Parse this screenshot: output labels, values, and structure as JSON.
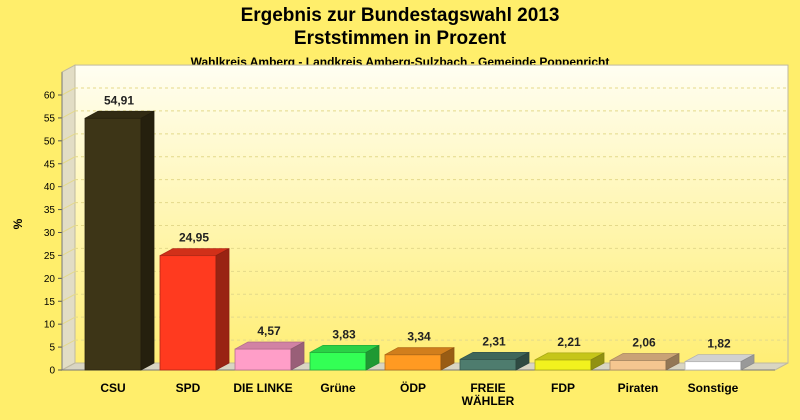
{
  "header": {
    "title": "Ergebnis zur Bundestagswahl 2013",
    "subtitle": "Erststimmen in Prozent",
    "caption": "Wahlkreis Amberg - Landkreis Amberg-Sulzbach - Gemeinde Poppenricht"
  },
  "chart_data": {
    "type": "bar",
    "title": "Ergebnis zur Bundestagswahl 2013",
    "subtitle": "Erststimmen in Prozent",
    "ylabel": "%",
    "ylim": [
      0,
      65
    ],
    "yticks": [
      0,
      5,
      10,
      15,
      20,
      25,
      30,
      35,
      40,
      45,
      50,
      55,
      60
    ],
    "grid": true,
    "categories": [
      [
        "CSU"
      ],
      [
        "SPD"
      ],
      [
        "DIE LINKE"
      ],
      [
        "Grüne"
      ],
      [
        "ÖDP"
      ],
      [
        "FREIE",
        "WÄHLER"
      ],
      [
        "FDP"
      ],
      [
        "Piraten"
      ],
      [
        "Sonstige"
      ]
    ],
    "values": [
      54.91,
      24.95,
      4.57,
      3.83,
      3.34,
      2.31,
      2.21,
      2.06,
      1.82
    ],
    "value_labels": [
      "54,91",
      "24,95",
      "4,57",
      "3,83",
      "3,34",
      "2,31",
      "2,21",
      "2,06",
      "1,82"
    ],
    "colors": [
      "#3d3517",
      "#ff3a1f",
      "#ff9ec8",
      "#33ff55",
      "#ff9a22",
      "#4e7c6e",
      "#f2f21e",
      "#f5c690",
      "#ffffff"
    ]
  }
}
